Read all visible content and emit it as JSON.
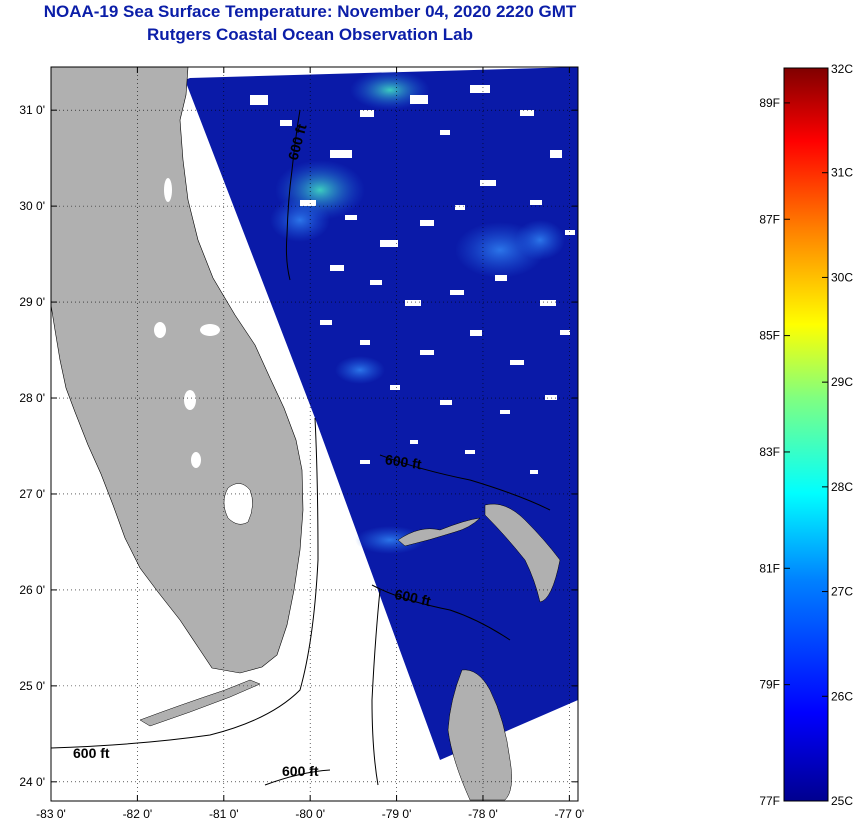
{
  "header": {
    "title": "NOAA-19 Sea Surface Temperature:  November 04, 2020 2220 GMT",
    "subtitle": "Rutgers Coastal Ocean Observation Lab"
  },
  "map": {
    "lon_range": [
      -83.0,
      -76.9
    ],
    "lat_range": [
      23.8,
      31.45
    ],
    "lon_ticks": [
      {
        "v": -83,
        "label": "-83 0'"
      },
      {
        "v": -82,
        "label": "-82 0'"
      },
      {
        "v": -81,
        "label": "-81 0'"
      },
      {
        "v": -80,
        "label": "-80 0'"
      },
      {
        "v": -79,
        "label": "-79 0'"
      },
      {
        "v": -78,
        "label": "-78 0'"
      },
      {
        "v": -77,
        "label": "-77 0'"
      }
    ],
    "lat_ticks": [
      {
        "v": 31,
        "label": "31 0'"
      },
      {
        "v": 30,
        "label": "30 0'"
      },
      {
        "v": 29,
        "label": "29 0'"
      },
      {
        "v": 28,
        "label": "28 0'"
      },
      {
        "v": 27,
        "label": "27 0'"
      },
      {
        "v": 26,
        "label": "26 0'"
      },
      {
        "v": 25,
        "label": "25 0'"
      },
      {
        "v": 24,
        "label": "24 0'"
      }
    ],
    "grid": "dotted",
    "contour_labels": [
      "600 ft",
      "600 ft",
      "600 ft",
      "600 ft",
      "600 ft"
    ],
    "colors": {
      "land": "#b0b0b0",
      "ocean": "#0a1aa8",
      "no_data": "#ffffff"
    }
  },
  "colorbar": {
    "c_range": [
      25,
      32
    ],
    "c_labels": [
      "32C",
      "31C",
      "30C",
      "29C",
      "28C",
      "27C",
      "26C",
      "25C"
    ],
    "f_labels": [
      "89F",
      "87F",
      "85F",
      "83F",
      "81F",
      "79F",
      "77F"
    ],
    "colors": [
      "#00008f",
      "#0000ff",
      "#0080ff",
      "#00ffff",
      "#80ff80",
      "#ffff00",
      "#ff8000",
      "#ff0000",
      "#800000"
    ]
  }
}
